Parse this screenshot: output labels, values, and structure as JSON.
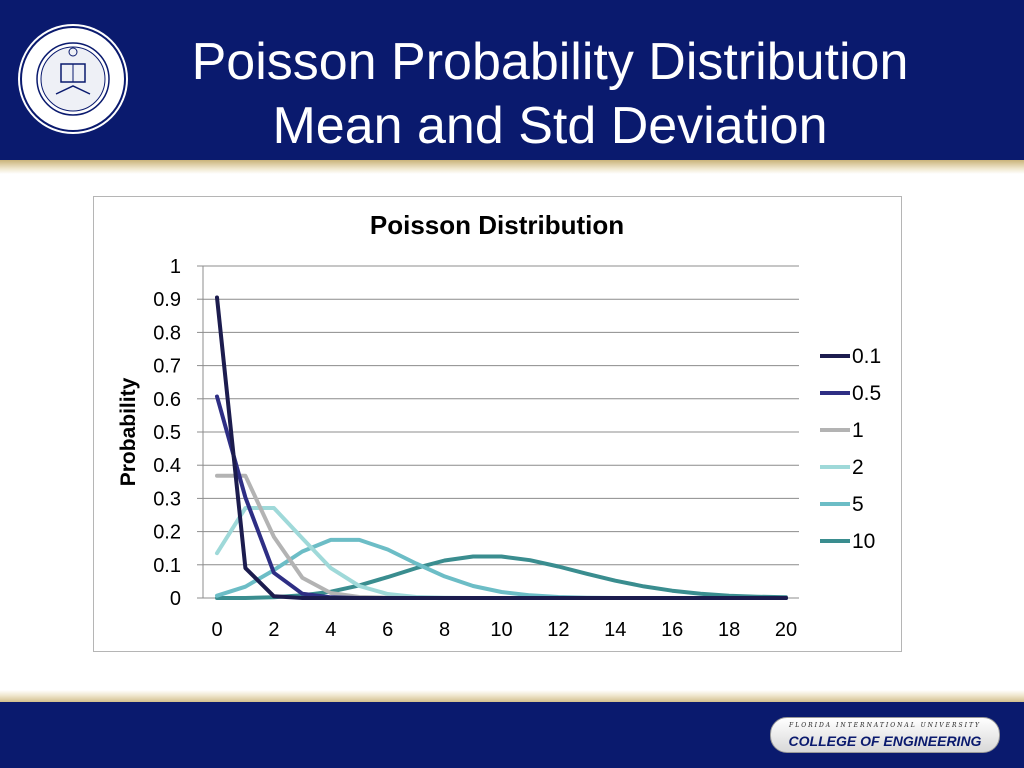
{
  "slide": {
    "title_line1": "Poisson Probability Distribution",
    "title_line2": "Mean and Std Deviation"
  },
  "footer": {
    "university": "FLORIDA INTERNATIONAL UNIVERSITY",
    "college": "COLLEGE OF ENGINEERING"
  },
  "colors": {
    "header_bg": "#0a1a6e",
    "gold": "#c9b37a"
  },
  "chart_data": {
    "type": "line",
    "title": "Poisson Distribution",
    "xlabel": "",
    "ylabel": "Probability",
    "x": [
      0,
      1,
      2,
      3,
      4,
      5,
      6,
      7,
      8,
      9,
      10,
      11,
      12,
      13,
      14,
      15,
      16,
      17,
      18,
      19,
      20
    ],
    "xticks": [
      "0",
      "2",
      "4",
      "6",
      "8",
      "10",
      "12",
      "14",
      "16",
      "18",
      "20"
    ],
    "yticks": [
      "0",
      "0.1",
      "0.2",
      "0.3",
      "0.4",
      "0.5",
      "0.6",
      "0.7",
      "0.8",
      "0.9",
      "1"
    ],
    "ylim": [
      0,
      1
    ],
    "xlim": [
      0,
      20
    ],
    "grid": true,
    "legend_position": "right",
    "series": [
      {
        "name": "0.1",
        "color": "#1c1c4e",
        "values": [
          0.905,
          0.09,
          0.005,
          0.0,
          0,
          0,
          0,
          0,
          0,
          0,
          0,
          0,
          0,
          0,
          0,
          0,
          0,
          0,
          0,
          0,
          0
        ]
      },
      {
        "name": "0.5",
        "color": "#2e2e84",
        "values": [
          0.607,
          0.303,
          0.076,
          0.013,
          0.002,
          0.0,
          0,
          0,
          0,
          0,
          0,
          0,
          0,
          0,
          0,
          0,
          0,
          0,
          0,
          0,
          0
        ]
      },
      {
        "name": "1",
        "color": "#b3b3b3",
        "values": [
          0.368,
          0.368,
          0.184,
          0.061,
          0.015,
          0.003,
          0.001,
          0.0,
          0,
          0,
          0,
          0,
          0,
          0,
          0,
          0,
          0,
          0,
          0,
          0,
          0
        ]
      },
      {
        "name": "2",
        "color": "#9fd9d9",
        "values": [
          0.135,
          0.271,
          0.271,
          0.18,
          0.09,
          0.036,
          0.012,
          0.003,
          0.001,
          0.0,
          0,
          0,
          0,
          0,
          0,
          0,
          0,
          0,
          0,
          0,
          0
        ]
      },
      {
        "name": "5",
        "color": "#6cbdc6",
        "values": [
          0.007,
          0.034,
          0.084,
          0.14,
          0.175,
          0.175,
          0.146,
          0.104,
          0.065,
          0.036,
          0.018,
          0.008,
          0.003,
          0.001,
          0.0,
          0,
          0,
          0,
          0,
          0,
          0
        ]
      },
      {
        "name": "10",
        "color": "#3a8d8f",
        "values": [
          0.0,
          0.0,
          0.002,
          0.008,
          0.019,
          0.038,
          0.063,
          0.09,
          0.113,
          0.125,
          0.125,
          0.114,
          0.095,
          0.073,
          0.052,
          0.035,
          0.022,
          0.013,
          0.007,
          0.004,
          0.002
        ]
      }
    ]
  }
}
